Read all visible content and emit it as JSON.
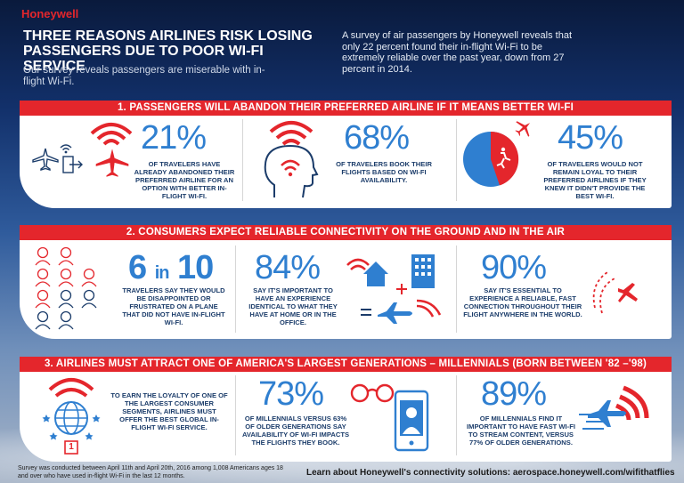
{
  "brand": {
    "logo": "Honeywell",
    "accent": "#e4262c",
    "stat_color": "#2f7fd0",
    "text_navy": "#1b3c6a"
  },
  "header": {
    "title": "Three reasons airlines risk losing passengers due to poor Wi-Fi service",
    "subtitle": "Our survey reveals passengers are miserable with in-flight Wi-Fi.",
    "intro": "A survey of air passengers by Honeywell reveals that only 22 percent found their in-flight Wi-Fi to be extremely reliable over the past year, down from 27 percent in 2014."
  },
  "sections": [
    {
      "title": "1. Passengers will abandon their preferred airline if it means better Wi-Fi",
      "stats": [
        {
          "value": "21%",
          "text": "Of travelers have already abandoned their preferred airline for an option with better in-flight Wi-Fi.",
          "icons": [
            "plane-icon",
            "wifi-icon",
            "exit-icon",
            "plane-icon"
          ]
        },
        {
          "value": "68%",
          "text": "Of travelers book their flights based on Wi-Fi availability.",
          "icons": [
            "head-wifi-icon"
          ]
        },
        {
          "value": "45%",
          "text": "Of travelers would not remain loyal to their preferred airlines if they knew it didn't provide the best Wi-Fi.",
          "icons": [
            "pie-icon",
            "plane-icon"
          ]
        }
      ]
    },
    {
      "title": "2. Consumers expect reliable connectivity on the ground and in the air",
      "stats": [
        {
          "value_main": "6",
          "value_in": "in",
          "value_end": "10",
          "text": "Travelers say they would be disappointed or frustrated on a plane that did not have in-flight Wi-Fi.",
          "icons": [
            "people-grid-icon"
          ]
        },
        {
          "value": "84%",
          "text": "Say it's important to have an experience identical to what they have at home or in the office.",
          "icons": [
            "home-wifi-icon",
            "office-icon",
            "plane-wifi-icon"
          ]
        },
        {
          "value": "90%",
          "text": "Say it's essential to experience a reliable, fast connection throughout their flight anywhere in the world.",
          "icons": [
            "plane-icon"
          ]
        }
      ]
    },
    {
      "title": "3. Airlines must attract one of America's largest generations – millennials (born between '82 –'98)",
      "stats": [
        {
          "text": "To earn the loyalty of one of the largest consumer segments, airlines must offer the best global in-flight Wi-Fi service.",
          "icons": [
            "globe-wifi-icon"
          ],
          "badge": "1"
        },
        {
          "value": "73%",
          "text": "Of millennials versus 63% of older generations say availability of Wi-Fi impacts the flights they book.",
          "icons": [
            "glasses-icon",
            "phone-icon"
          ]
        },
        {
          "value": "89%",
          "text": "Of millennials find it important to have fast Wi-Fi to stream content, versus 77% of older generations.",
          "icons": [
            "plane-wifi-icon"
          ]
        }
      ]
    }
  ],
  "footer": {
    "note": "Survey was conducted between April 11th and April 20th, 2016 among 1,008 Americans ages 18 and over who have used in-flight Wi-Fi in the last 12 months.",
    "learn_more": "Learn about Honeywell's connectivity solutions: aerospace.honeywell.com/wifithatflies"
  }
}
